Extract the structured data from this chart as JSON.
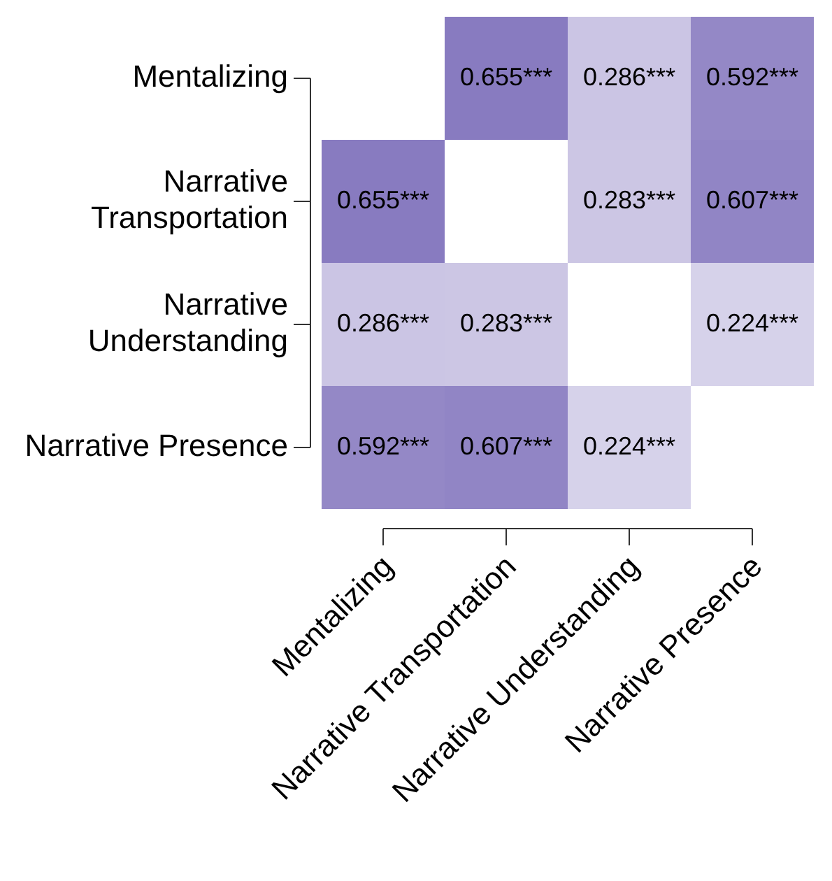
{
  "chart_data": {
    "type": "heatmap",
    "categories": [
      "Mentalizing",
      "Narrative Transportation",
      "Narrative Understanding",
      "Narrative Presence"
    ],
    "y_categories": [
      "Mentalizing",
      "Narrative Transportation",
      "Narrative Understanding",
      "Narrative Presence"
    ],
    "cells": [
      [
        null,
        0.655,
        0.286,
        0.592
      ],
      [
        0.655,
        null,
        0.283,
        0.607
      ],
      [
        0.286,
        0.283,
        null,
        0.224
      ],
      [
        0.592,
        0.607,
        0.224,
        null
      ]
    ],
    "cell_labels": [
      [
        null,
        "0.655***",
        "0.286***",
        "0.592***"
      ],
      [
        "0.655***",
        null,
        "0.283***",
        "0.607***"
      ],
      [
        "0.286***",
        "0.283***",
        null,
        "0.224***"
      ],
      [
        "0.592***",
        "0.607***",
        "0.224***",
        null
      ]
    ]
  }
}
